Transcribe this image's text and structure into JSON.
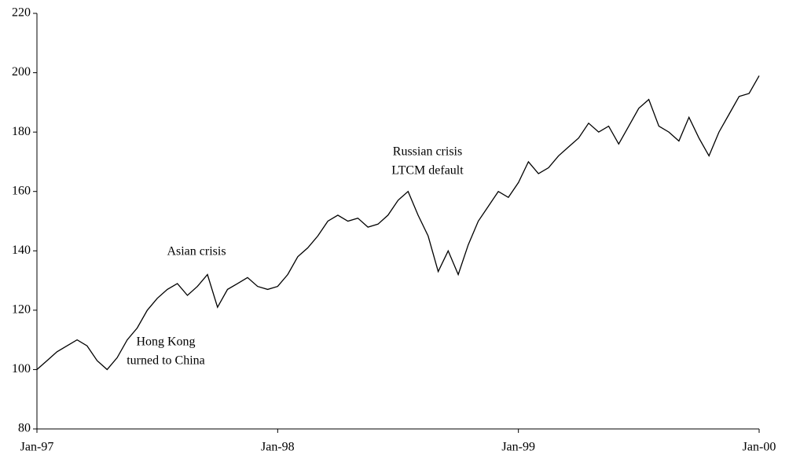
{
  "chart_data": {
    "type": "line",
    "categories": [
      "Jan-97",
      null,
      null,
      null,
      null,
      null,
      null,
      null,
      null,
      null,
      null,
      null,
      null,
      null,
      null,
      null,
      null,
      null,
      null,
      null,
      null,
      null,
      null,
      null,
      "Jan-98",
      null,
      null,
      null,
      null,
      null,
      null,
      null,
      null,
      null,
      null,
      null,
      null,
      null,
      null,
      null,
      null,
      null,
      null,
      null,
      null,
      null,
      null,
      null,
      "Jan-99",
      null,
      null,
      null,
      null,
      null,
      null,
      null,
      null,
      null,
      null,
      null,
      null,
      null,
      null,
      null,
      null,
      null,
      null,
      null,
      null,
      null,
      null,
      null,
      "Jan-00"
    ],
    "series": [
      {
        "color": "#000000",
        "values": [
          100,
          103,
          106,
          108,
          110,
          108,
          103,
          100,
          104,
          110,
          114,
          120,
          124,
          127,
          129,
          125,
          128,
          132,
          121,
          127,
          129,
          131,
          128,
          127,
          128,
          132,
          138,
          141,
          145,
          150,
          152,
          150,
          151,
          148,
          149,
          152,
          157,
          160,
          152,
          145,
          133,
          140,
          132,
          142,
          150,
          155,
          160,
          158,
          163,
          170,
          166,
          168,
          172,
          175,
          178,
          183,
          180,
          182,
          176,
          182,
          188,
          191,
          182,
          180,
          177,
          185,
          178,
          172,
          180,
          186,
          192,
          193,
          199
        ]
      }
    ],
    "ylim": [
      80,
      220
    ],
    "yticks": [
      80,
      100,
      120,
      140,
      160,
      180,
      200,
      220
    ],
    "grid": false,
    "annotations": [
      {
        "lines": [
          "Asian crisis"
        ]
      },
      {
        "lines": [
          "Hong Kong",
          "turned to China"
        ]
      },
      {
        "lines": [
          "Russian crisis",
          "LTCM default"
        ]
      }
    ]
  }
}
